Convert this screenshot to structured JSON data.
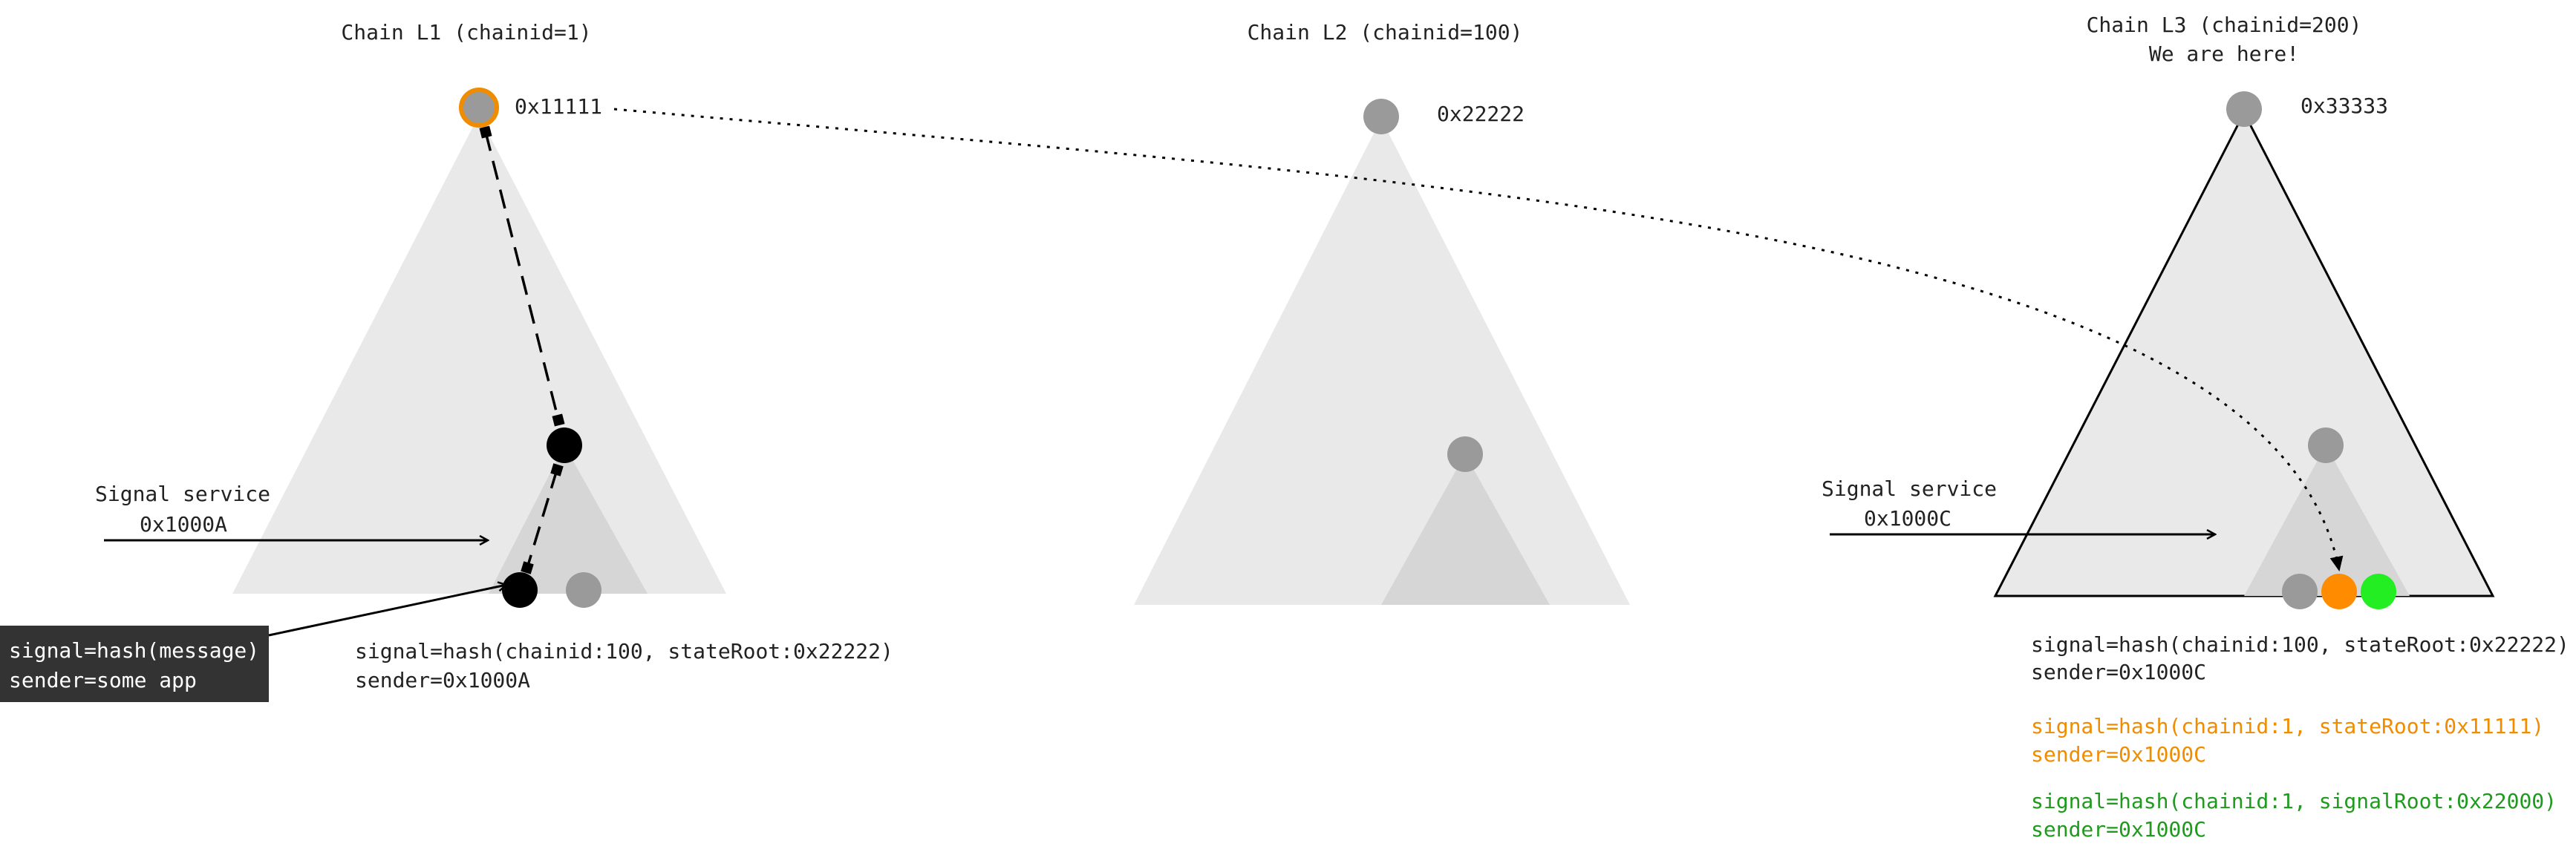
{
  "chains": [
    {
      "title": "Chain L1 (chainid=1)",
      "root_address": "0x11111",
      "subtitle": ""
    },
    {
      "title": "Chain L2 (chainid=100)",
      "root_address": "0x22222",
      "subtitle": ""
    },
    {
      "title": "Chain L3 (chainid=200)",
      "root_address": "0x33333",
      "subtitle": "We are here!"
    }
  ],
  "signal_service_l1": {
    "label": "Signal service",
    "address": "0x1000A"
  },
  "signal_service_l3": {
    "label": "Signal service",
    "address": "0x1000C"
  },
  "app_box": {
    "line1": "signal=hash(message)",
    "line2": "sender=some app"
  },
  "l1_signal": {
    "line1": "signal=hash(chainid:100, stateRoot:0x22222)",
    "line2": "sender=0x1000A"
  },
  "l3_signals": [
    {
      "line1": "signal=hash(chainid:100, stateRoot:0x22222)",
      "line2": "sender=0x1000C",
      "color": "#222222"
    },
    {
      "line1": "signal=hash(chainid:1, stateRoot:0x11111)",
      "line2": "sender=0x1000C",
      "color": "#f08c00"
    },
    {
      "line1": "signal=hash(chainid:1, signalRoot:0x22000)",
      "line2": "sender=0x1000C",
      "color": "#1f9a1f"
    }
  ],
  "colors": {
    "tree_fill": "#e9e9e9",
    "subtree_fill": "#d6d6d6",
    "node_gray": "#9a9a9a",
    "node_black": "#000000",
    "node_orange": "#ff8c00",
    "node_green": "#22ee22",
    "box_bg": "#333333"
  }
}
